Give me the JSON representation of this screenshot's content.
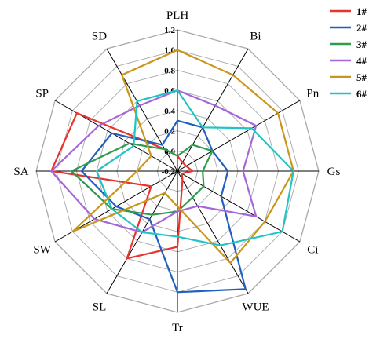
{
  "chart_data": {
    "type": "radar",
    "axes": [
      "PLH",
      "Bi",
      "Pn",
      "Gs",
      "Ci",
      "WUE",
      "Tr",
      "SL",
      "SW",
      "SA",
      "SP",
      "SD"
    ],
    "rlim": [
      -0.2,
      1.2
    ],
    "ticks": [
      "-0.2",
      "0.0",
      "0.2",
      "0.4",
      "0.6",
      "0.8",
      "1.0",
      "1.2"
    ],
    "tick_values": [
      -0.2,
      0.0,
      0.2,
      0.4,
      0.6,
      0.8,
      1.0,
      1.2
    ],
    "grid": true,
    "legend_position": "top-right",
    "series": [
      {
        "name": "1#",
        "color": "#e8332f",
        "values": [
          -0.05,
          -0.1,
          -0.1,
          -0.05,
          -0.15,
          -0.1,
          0.55,
          0.8,
          0.1,
          1.05,
          0.95,
          0.05
        ]
      },
      {
        "name": "2#",
        "color": "#1f5fc0",
        "values": [
          0.3,
          0.3,
          0.2,
          0.3,
          0.3,
          1.15,
          1.0,
          0.35,
          0.5,
          0.75,
          0.55,
          0.1
        ]
      },
      {
        "name": "3#",
        "color": "#2e9b4e",
        "values": [
          -0.05,
          0.1,
          0.2,
          0.05,
          0.1,
          0.1,
          0.2,
          0.3,
          0.55,
          0.85,
          0.35,
          0.05
        ]
      },
      {
        "name": "4#",
        "color": "#a566d9",
        "values": [
          0.6,
          0.55,
          0.7,
          0.45,
          0.7,
          0.2,
          0.2,
          0.5,
          0.75,
          1.05,
          0.7,
          0.55
        ]
      },
      {
        "name": "5#",
        "color": "#c9961a",
        "values": [
          1.0,
          0.9,
          0.95,
          0.95,
          0.8,
          0.85,
          0.15,
          0.05,
          1.0,
          0.2,
          0.1,
          0.9
        ]
      },
      {
        "name": "6#",
        "color": "#22c3c5",
        "values": [
          0.6,
          0.3,
          0.65,
          0.95,
          1.0,
          0.65,
          0.45,
          0.5,
          0.55,
          0.6,
          0.3,
          0.6
        ]
      }
    ]
  }
}
